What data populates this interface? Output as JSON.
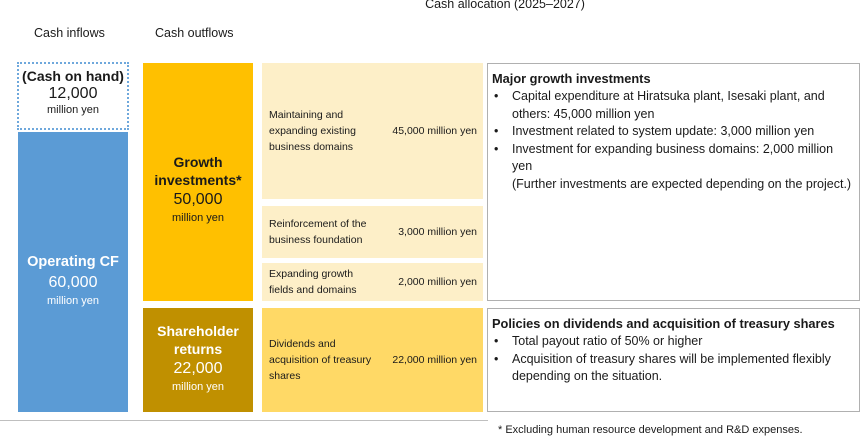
{
  "title": "Cash allocation (2025–2027)",
  "col_inflows": "Cash inflows",
  "col_outflows": "Cash outflows",
  "cash_on_hand": {
    "label": "(Cash on hand)",
    "amount": "12,000",
    "unit": "million yen"
  },
  "operating_cf": {
    "label": "Operating CF",
    "amount": "60,000",
    "unit": "million yen"
  },
  "growth": {
    "label_line1": "Growth",
    "label_line2": "investments*",
    "amount": "50,000",
    "unit": "million yen"
  },
  "shareholder": {
    "label_line1": "Shareholder",
    "label_line2": "returns",
    "amount": "22,000",
    "unit": "million yen"
  },
  "items": [
    {
      "label": "Maintaining and expanding existing business domains",
      "amount": "45,000 million yen"
    },
    {
      "label": "Reinforcement of the business foundation",
      "amount": "3,000 million yen"
    },
    {
      "label": "Expanding growth fields and domains",
      "amount": "2,000 million yen"
    },
    {
      "label": "Dividends and acquisition of treasury shares",
      "amount": "22,000 million yen"
    }
  ],
  "panel_growth": {
    "heading": "Major growth investments",
    "bullets": [
      "Capital expenditure at Hiratsuka plant, Isesaki plant, and others: 45,000 million yen",
      "Investment related to system update: 3,000 million yen",
      "Investment for expanding business domains: 2,000  million yen"
    ],
    "note": "(Further investments are expected depending on the project.)"
  },
  "panel_returns": {
    "heading": "Policies on dividends and acquisition of treasury shares",
    "bullets": [
      "Total payout ratio of 50% or higher",
      "Acquisition of treasury shares will be implemented flexibly depending on the situation."
    ]
  },
  "bullet_char": "•",
  "footnote": "*  Excluding human resource development and R&D expenses."
}
